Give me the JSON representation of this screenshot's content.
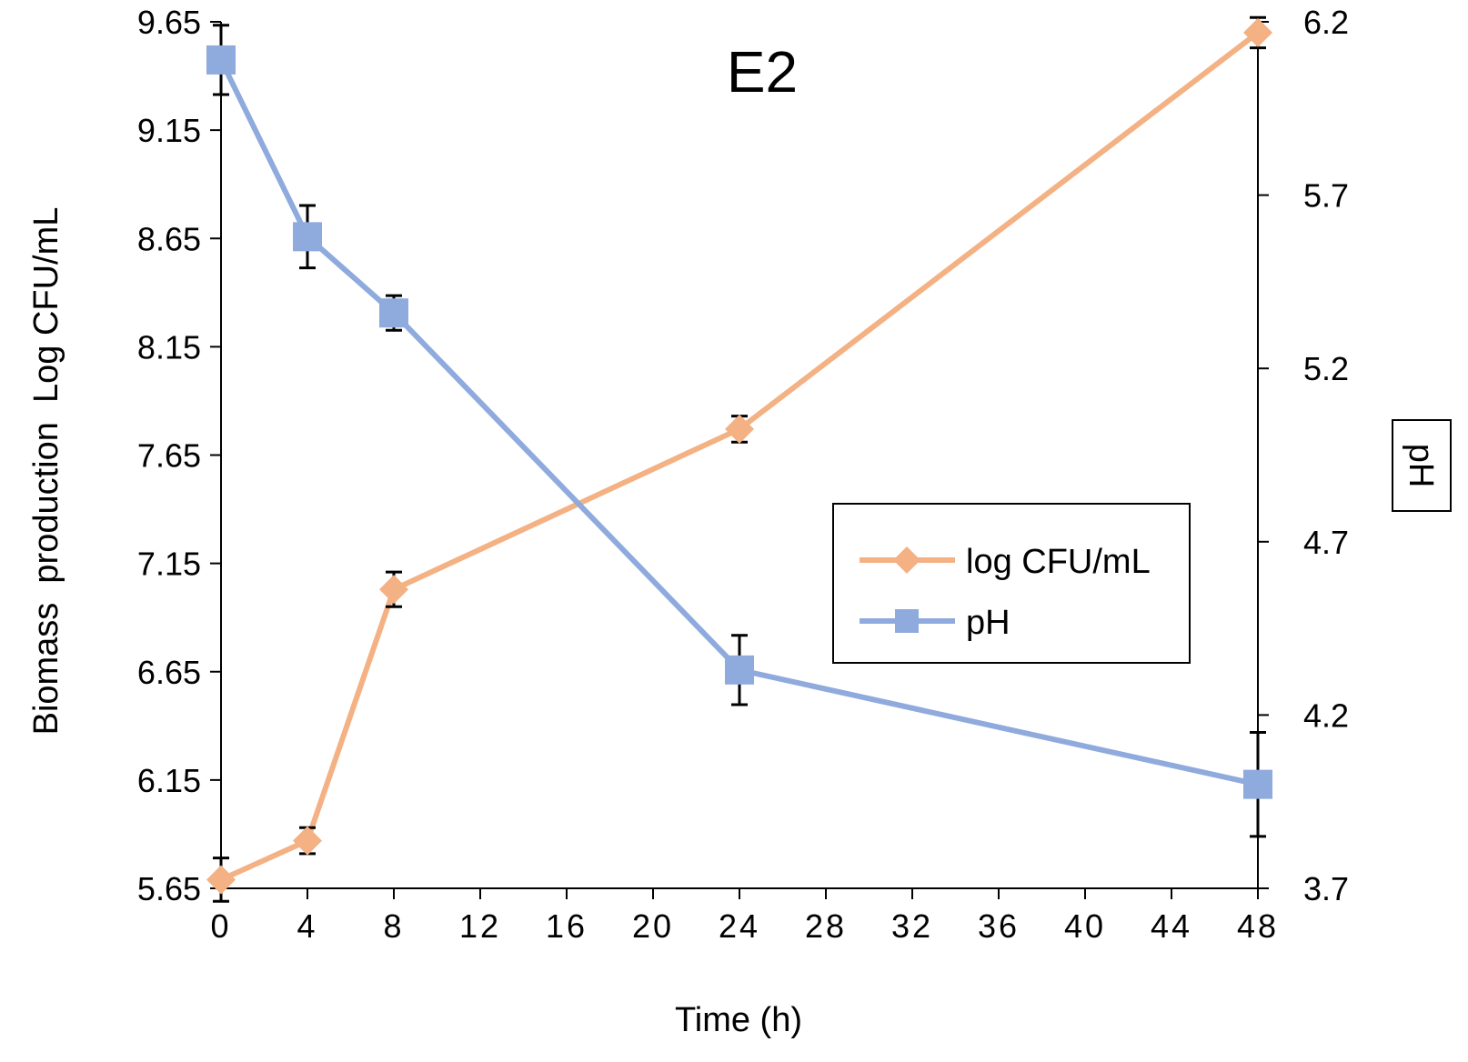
{
  "chart_data": {
    "type": "line",
    "title": "E2",
    "xlabel": "Time (h)",
    "ylabel": "Biomass  production  Log CFU/mL",
    "y2label": "pH",
    "xlim": [
      0,
      48
    ],
    "ylim": [
      5.65,
      9.65
    ],
    "y2lim": [
      3.7,
      6.2
    ],
    "x_ticks": [
      "0",
      "4",
      "8",
      "12",
      "16",
      "20",
      "24",
      "28",
      "32",
      "36",
      "40",
      "44",
      "48"
    ],
    "y_ticks": [
      "5.65",
      "6.15",
      "6.65",
      "7.15",
      "7.65",
      "8.15",
      "8.65",
      "9.15",
      "9.65"
    ],
    "y2_ticks": [
      "3.7",
      "4.2",
      "4.7",
      "5.2",
      "5.7",
      "6.2"
    ],
    "legend_position": "center-right",
    "series": [
      {
        "name": "log CFU/mL",
        "axis": "left",
        "marker": "diamond",
        "color": "#F4B183",
        "x": [
          0,
          4,
          8,
          24,
          48
        ],
        "values": [
          5.69,
          5.87,
          7.03,
          7.77,
          9.6
        ],
        "errors": [
          0.1,
          0.06,
          0.08,
          0.06,
          0.07
        ]
      },
      {
        "name": "pH",
        "axis": "right",
        "marker": "square",
        "color": "#8FAADC",
        "x": [
          0,
          4,
          8,
          24,
          48
        ],
        "values": [
          6.09,
          5.58,
          5.36,
          4.33,
          4.0
        ],
        "errors": [
          0.1,
          0.09,
          0.05,
          0.1,
          0.15
        ]
      }
    ]
  }
}
